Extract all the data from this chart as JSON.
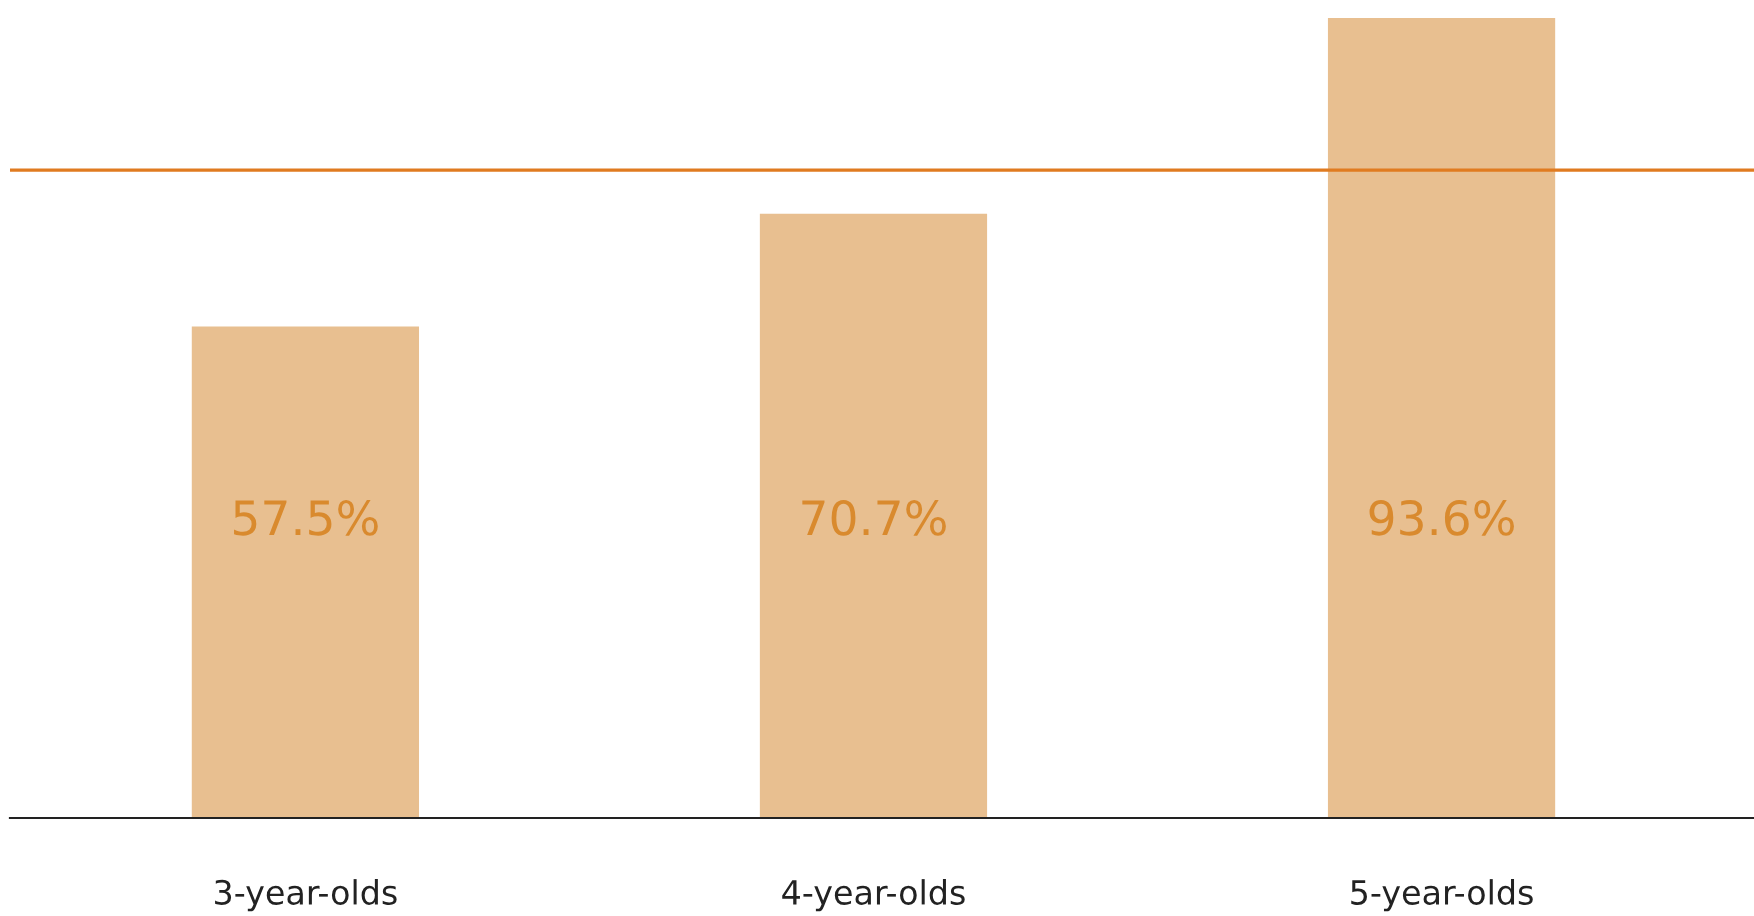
{
  "chart_data": {
    "type": "bar",
    "categories": [
      "3-year-olds",
      "4-year-olds",
      "5-year-olds"
    ],
    "values": [
      57.5,
      70.7,
      93.6
    ],
    "value_labels": [
      "57.5%",
      "70.7%",
      "93.6%"
    ],
    "color": "#e8bf90",
    "ref_lines": [
      {
        "axis": "y",
        "value": 75.8,
        "color": "#e07b20",
        "line_style": "solid"
      }
    ],
    "grid": false,
    "legend": false
  }
}
